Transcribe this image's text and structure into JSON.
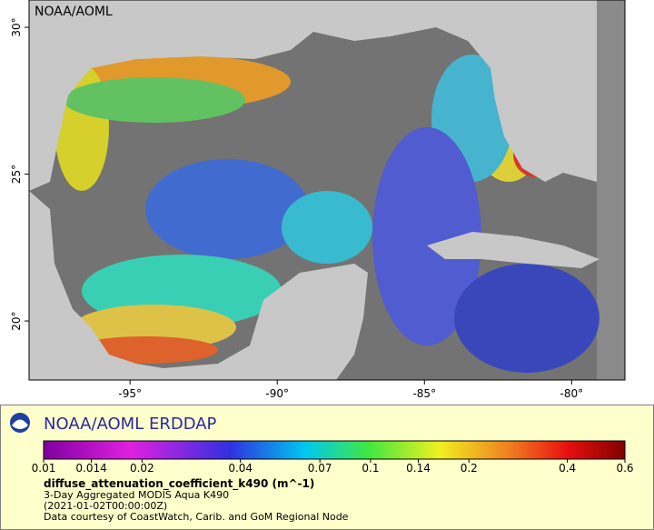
{
  "map": {
    "source_label": "NOAA/AOML",
    "lonlim": [
      -98.43,
      -78.19
    ],
    "latlim": [
      17.99,
      30.93
    ],
    "lonticks": [
      {
        "value": -95,
        "label": "-95°"
      },
      {
        "value": -90,
        "label": "-90°"
      },
      {
        "value": -85,
        "label": "-85°"
      },
      {
        "value": -80,
        "label": "-80°"
      }
    ],
    "latticks": [
      {
        "value": 20,
        "label": "20°"
      },
      {
        "value": 25,
        "label": "25°"
      },
      {
        "value": 30,
        "label": "30°"
      }
    ]
  },
  "legend": {
    "title": "NOAA/AOML ERDDAP",
    "colorbar": {
      "scale": "log",
      "lim": [
        0.01,
        0.6
      ],
      "ticks": [
        0.01,
        0.014,
        0.02,
        0.04,
        0.07,
        0.1,
        0.14,
        0.2,
        0.4,
        0.6
      ]
    },
    "variable": "diffuse_attenuation_coefficient_k490 (m^-1)",
    "lines": [
      "3-Day Aggregated MODIS Aqua K490",
      "(2021-01-02T00:00:00Z)",
      "Data courtesy of CoastWatch, Carib. and GoM Regional Node"
    ]
  }
}
